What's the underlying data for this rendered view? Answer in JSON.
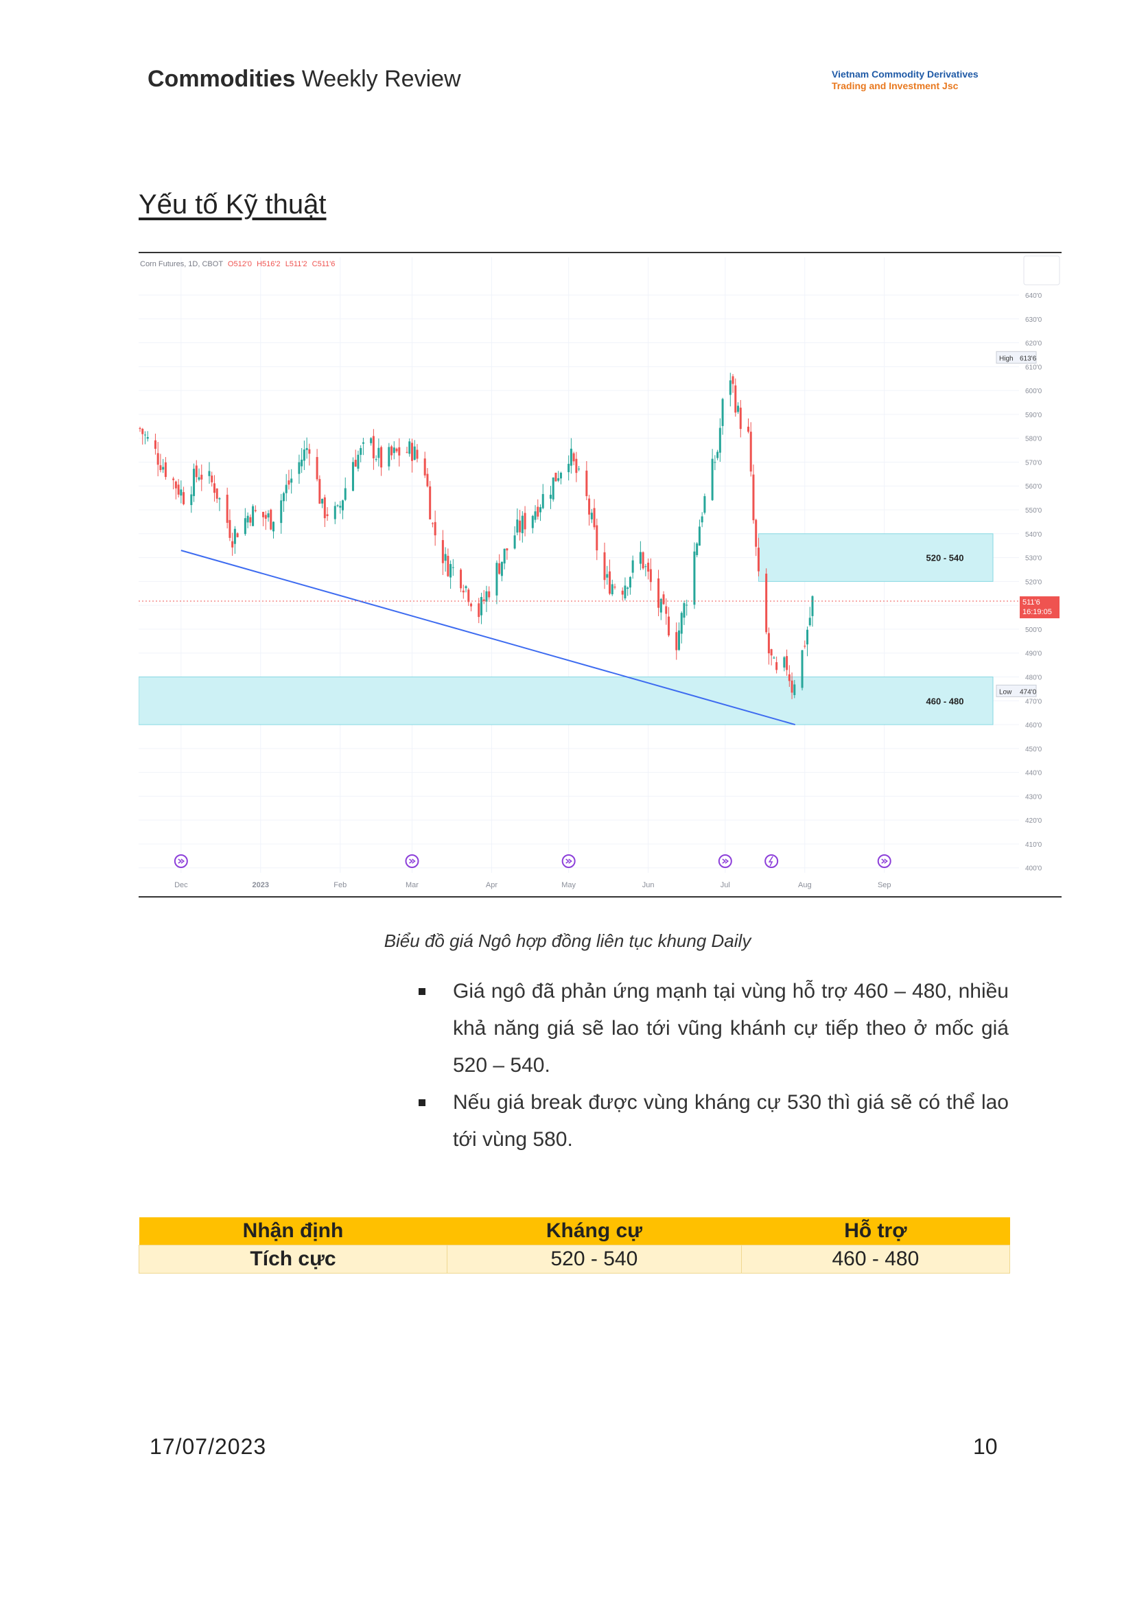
{
  "header": {
    "title_bold": "Commodities",
    "title_rest": " Weekly Review",
    "company_line1": "Vietnam Commodity Derivatives",
    "company_line2": "Trading and Investment Jsc"
  },
  "section_title": "Yếu tố Kỹ thuật",
  "chart": {
    "legend": {
      "symbol": "Corn Futures, 1D, CBOT",
      "open": "O512'0",
      "high": "H516'2",
      "low": "L511'2",
      "close": "C511'6"
    },
    "y_ticks": [
      "640'0",
      "630'0",
      "620'0",
      "610'0",
      "600'0",
      "590'0",
      "580'0",
      "570'0",
      "560'0",
      "550'0",
      "540'0",
      "530'0",
      "520'0",
      "510'0",
      "500'0",
      "490'0",
      "480'0",
      "470'0",
      "460'0",
      "450'0",
      "440'0",
      "430'0",
      "420'0",
      "410'0",
      "400'0"
    ],
    "x_ticks": [
      "Dec",
      "2023",
      "Feb",
      "Mar",
      "Apr",
      "May",
      "Jun",
      "Jul",
      "Aug",
      "Sep"
    ],
    "high_label": "High",
    "high_value": "613'6",
    "low_label": "Low",
    "low_value": "474'0",
    "last_price": "511'6",
    "countdown": "16:19:05",
    "zone_upper_label": "520 - 540",
    "zone_lower_label": "460 - 480",
    "colors": {
      "up": "#26a69a",
      "down": "#ef5350",
      "zone": "#cdf1f5",
      "trendline": "#3d6bf0"
    }
  },
  "chart_data": {
    "type": "candlestick",
    "ylim": [
      400,
      645
    ],
    "zones": [
      {
        "from": 520,
        "to": 540,
        "label": "520 - 540"
      },
      {
        "from": 460,
        "to": 480,
        "label": "460 - 480"
      }
    ],
    "trendline": [
      {
        "date": "2022-12-01",
        "y": 533
      },
      {
        "date": "2023-09-01",
        "y": 460
      }
    ],
    "last_close": 511.75,
    "high": 613.75,
    "low": 474,
    "anchors": [
      [
        "2022-11-15",
        584
      ],
      [
        "2022-11-28",
        562
      ],
      [
        "2022-12-02",
        556
      ],
      [
        "2022-12-08",
        566
      ],
      [
        "2022-12-14",
        560
      ],
      [
        "2022-12-21",
        539
      ],
      [
        "2022-12-28",
        549
      ],
      [
        "2023-01-05",
        546
      ],
      [
        "2023-01-12",
        561
      ],
      [
        "2023-01-20",
        578
      ],
      [
        "2023-01-25",
        550
      ],
      [
        "2023-01-31",
        548
      ],
      [
        "2023-02-06",
        571
      ],
      [
        "2023-02-13",
        577
      ],
      [
        "2023-02-17",
        570
      ],
      [
        "2023-02-24",
        574
      ],
      [
        "2023-03-01",
        575
      ],
      [
        "2023-03-06",
        567
      ],
      [
        "2023-03-09",
        543
      ],
      [
        "2023-03-14",
        528
      ],
      [
        "2023-03-20",
        522
      ],
      [
        "2023-03-27",
        507
      ],
      [
        "2023-04-03",
        525
      ],
      [
        "2023-04-10",
        540
      ],
      [
        "2023-04-17",
        549
      ],
      [
        "2023-04-24",
        560
      ],
      [
        "2023-05-01",
        574
      ],
      [
        "2023-05-08",
        554
      ],
      [
        "2023-05-15",
        520
      ],
      [
        "2023-05-22",
        518
      ],
      [
        "2023-05-29",
        531
      ],
      [
        "2023-06-05",
        510
      ],
      [
        "2023-06-12",
        495
      ],
      [
        "2023-06-16",
        514
      ],
      [
        "2023-06-22",
        550
      ],
      [
        "2023-06-28",
        575
      ],
      [
        "2023-07-02",
        612
      ],
      [
        "2023-07-06",
        590
      ],
      [
        "2023-07-10",
        580
      ],
      [
        "2023-07-12",
        545
      ],
      [
        "2023-07-14",
        520
      ],
      [
        "2023-07-18",
        490
      ],
      [
        "2023-07-21",
        480
      ],
      [
        "2023-07-25",
        485
      ],
      [
        "2023-07-27",
        476
      ],
      [
        "2023-07-31",
        490
      ],
      [
        "2023-08-03",
        505
      ],
      [
        "2023-08-04",
        511.75
      ]
    ]
  },
  "caption": "Biểu đồ giá Ngô hợp đồng liên tục khung Daily",
  "bullets": [
    "Giá ngô đã phản ứng mạnh tại vùng hỗ trợ 460 – 480, nhiều khả năng giá sẽ lao tới vũng khánh cự tiếp theo ở mốc giá 520 – 540.",
    "Nếu giá break được vùng kháng cự 530 thì giá sẽ có thể lao tới vùng 580."
  ],
  "table": {
    "headers": [
      "Nhận định",
      "Kháng cự",
      "Hỗ trợ"
    ],
    "row": [
      "Tích cực",
      "520 - 540",
      "460 - 480"
    ]
  },
  "footer": {
    "date": "17/07/2023",
    "page": "10"
  }
}
